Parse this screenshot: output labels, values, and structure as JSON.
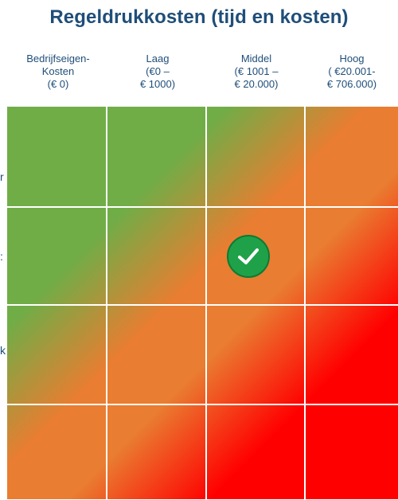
{
  "title": "Regeldrukkosten (tijd en kosten)",
  "columns": [
    {
      "lines": [
        "Bedrijfseigen-",
        "Kosten",
        "(€ 0)"
      ]
    },
    {
      "lines": [
        "Laag",
        "(€0 –",
        "€ 1000)"
      ]
    },
    {
      "lines": [
        "Middel",
        "(€ 1001 –",
        "€ 20.000)"
      ]
    },
    {
      "lines": [
        "Hoog",
        "( €20.001-",
        "€ 706.000)"
      ]
    }
  ],
  "row_label_fragments": [
    "r",
    ":",
    "k"
  ],
  "marker": {
    "icon": "checkmark-icon",
    "column": 3,
    "row": 2
  },
  "colors": {
    "title": "#1f4e79",
    "low": "#70ad47",
    "medium": "#e97d31",
    "high": "#ff0000",
    "check": "#1fa14a"
  }
}
